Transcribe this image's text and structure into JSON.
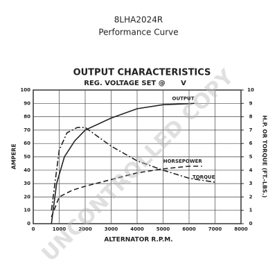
{
  "chart_data": {
    "type": "line",
    "title": "8LHA2024R",
    "subtitle": "Performance Curve",
    "chart_title": "OUTPUT CHARACTERISTICS",
    "chart_subtitle": "REG. VOLTAGE SET @",
    "chart_subtitle_unit": "V",
    "watermark": "UNCONTROLLED COPY",
    "xlabel": "ALTERNATOR R.P.M.",
    "ylabel": "AMPERE",
    "y2label": "H.P. OR TORQUE (FT.-LBS.)",
    "xlim": [
      0,
      8000
    ],
    "xticks": [
      0,
      1000,
      2000,
      3000,
      4000,
      5000,
      6000,
      7000,
      8000
    ],
    "ylim": [
      0,
      100
    ],
    "yticks": [
      0,
      10,
      20,
      30,
      40,
      50,
      60,
      70,
      80,
      90,
      100
    ],
    "y2lim": [
      0,
      10
    ],
    "y2ticks": [
      0,
      1,
      2,
      3,
      4,
      5,
      6,
      7,
      8,
      9,
      10
    ],
    "grid": true,
    "series": [
      {
        "name": "OUTPUT",
        "color": "#222222",
        "style": "solid",
        "x": [
          700,
          900,
          1200,
          1600,
          2000,
          3000,
          4000,
          5000,
          6200
        ],
        "values": [
          0,
          30,
          50,
          62,
          70,
          79,
          86,
          89,
          90
        ]
      },
      {
        "name": "HORSEPOWER",
        "color": "#222222",
        "style": "dashed",
        "axis": "y2",
        "x": [
          700,
          1000,
          1500,
          2000,
          3000,
          4000,
          5000,
          6000,
          6500
        ],
        "values": [
          0.5,
          2,
          2.5,
          2.8,
          3.3,
          3.8,
          4.1,
          4.3,
          4.3
        ]
      },
      {
        "name": "TORQUE",
        "color": "#222222",
        "style": "dashdot",
        "axis": "y2",
        "x": [
          700,
          1000,
          1300,
          1700,
          2000,
          3000,
          4000,
          5000,
          6000,
          7000
        ],
        "values": [
          1,
          5.5,
          6.8,
          7.2,
          7.2,
          5.8,
          4.7,
          4,
          3.4,
          3.1
        ]
      }
    ]
  }
}
